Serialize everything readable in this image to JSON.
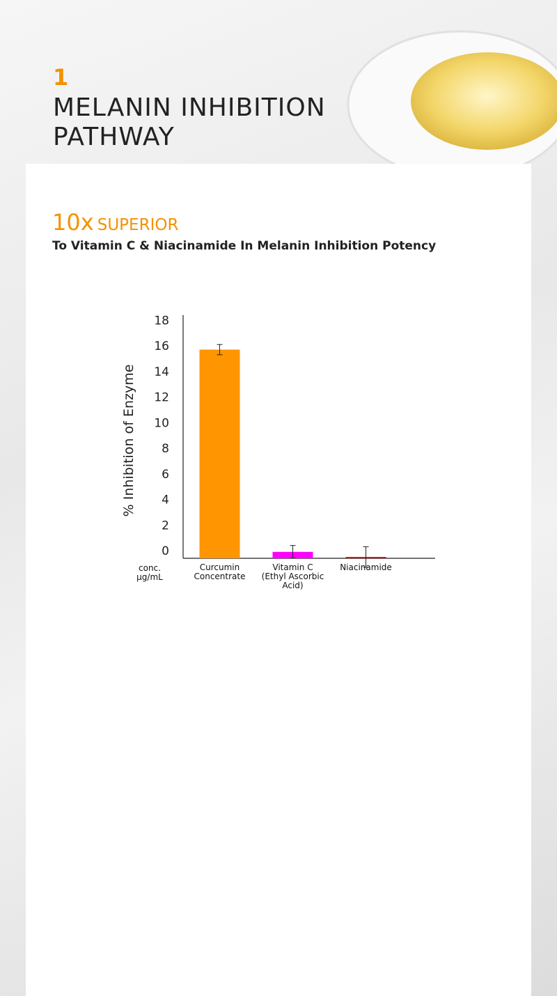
{
  "header": {
    "number": "1",
    "title": "MELANIN INHIBITION\nPATHWAY"
  },
  "headline": {
    "emphasis": "10x",
    "text": "SUPERIOR",
    "subtitle": "To Vitamin C & Niacinamide In Melanin Inhibition Potency"
  },
  "chart_data": {
    "type": "bar",
    "y_label": "% Inhibition of Enzyme",
    "x_note": "conc.\nμg/mL",
    "categories": [
      "Curcumin\nConcentrate",
      "Vitamin C\n(Ethyl Ascorbic\nAcid)",
      "Niacinamide"
    ],
    "values": [
      16.3,
      0.5,
      0.1
    ],
    "errors": [
      0.4,
      0.5,
      0.8
    ],
    "colors": [
      "#ff9500",
      "#ff00ff",
      "#cc0000"
    ],
    "ylim": [
      0,
      19
    ],
    "yticks": [
      0,
      2,
      4,
      6,
      8,
      10,
      12,
      14,
      16,
      18
    ]
  }
}
